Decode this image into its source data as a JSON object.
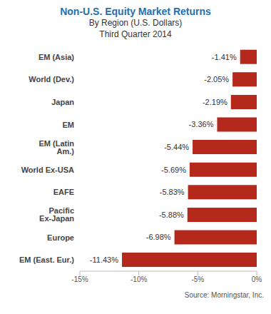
{
  "chart_data": {
    "type": "bar",
    "title": "Non-U.S. Equity Market Returns",
    "subtitle": [
      "By Region (U.S. Dollars)",
      "Third Quarter 2014"
    ],
    "annotations": [
      "Source: Morningstar, Inc."
    ],
    "orientation": "horizontal",
    "categories": [
      "EM (Asia)",
      "World (Dev.)",
      "Japan",
      "EM",
      "EM (Latin Am.)",
      "World Ex-USA",
      "EAFE",
      "Pacific Ex-Japan",
      "Europe",
      "EM (East. Eur.)"
    ],
    "values": [
      -1.41,
      -2.05,
      -2.19,
      -3.36,
      -5.44,
      -5.69,
      -5.83,
      -5.88,
      -6.98,
      -11.43
    ],
    "value_labels": [
      "-1.41%",
      "-2.05%",
      "-2.19%",
      "-3.36%",
      "-5.44%",
      "-5.69%",
      "-5.83%",
      "-5.88%",
      "-6.98%",
      "-11.43%"
    ],
    "data_labels": true,
    "color": "#b5281c",
    "xlim": [
      -15,
      0
    ],
    "xticks": [
      {
        "value": -15,
        "label": "-15%"
      },
      {
        "value": -10,
        "label": "-10%"
      },
      {
        "value": -5,
        "label": "-5%"
      },
      {
        "value": 0,
        "label": "0%"
      }
    ],
    "grid": false
  }
}
